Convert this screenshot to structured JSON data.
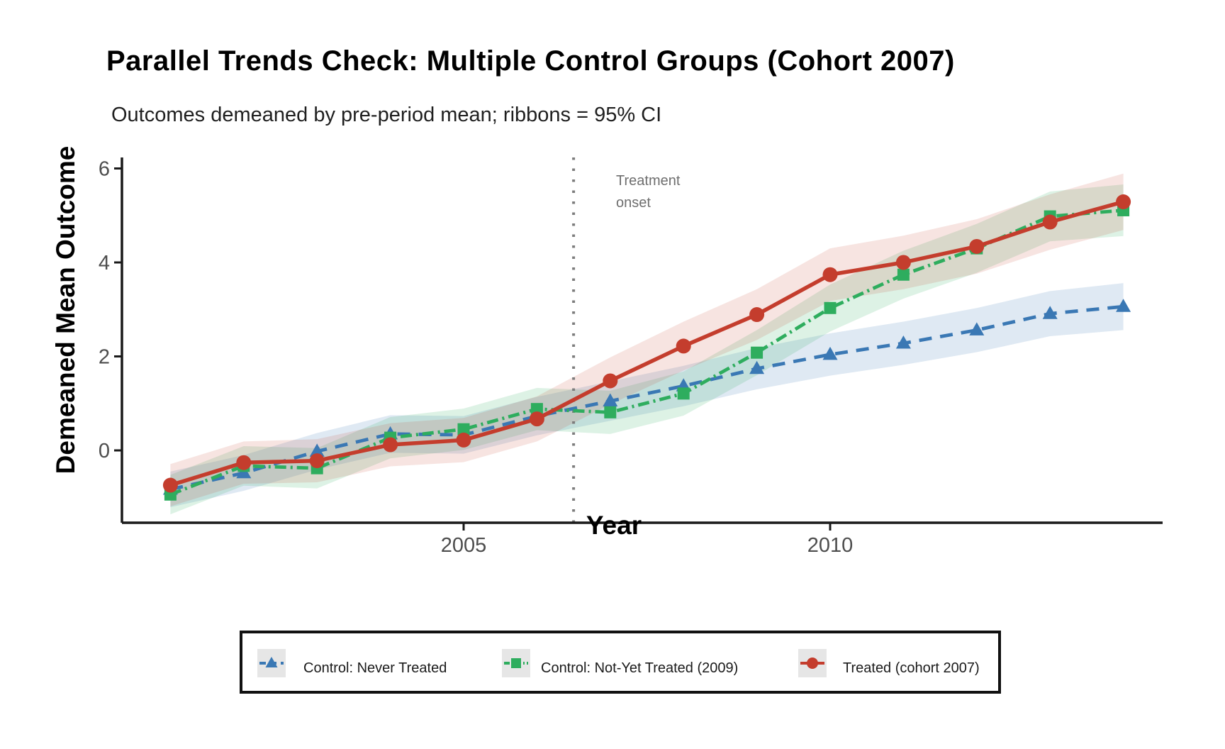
{
  "title": "Parallel Trends Check: Multiple Control Groups (Cohort 2007)",
  "subtitle": "Outcomes demeaned by pre-period mean; ribbons = 95% CI",
  "axes": {
    "x_label": "Year",
    "y_label": "Demeaned Mean Outcome",
    "x_ticks": [
      "2005",
      "2010"
    ],
    "x_tick_years": [
      2005,
      2010
    ],
    "y_ticks": [
      "0",
      "2",
      "4",
      "6"
    ],
    "y_tick_values": [
      0,
      2,
      4,
      6
    ]
  },
  "annotation": {
    "line1": "Treatment",
    "line2": "onset"
  },
  "colors": {
    "never_treated_blue": "#3A78B4",
    "not_yet_treated_green": "#2EAD5E",
    "treated_red": "#C43D2D",
    "vline_grey": "#7d7d7d",
    "tick_label_grey": "#4d4d4d",
    "axis_black": "#1a1a1a"
  },
  "chart_data": {
    "type": "line",
    "x": [
      2001,
      2002,
      2003,
      2004,
      2005,
      2006,
      2007,
      2008,
      2009,
      2010,
      2011,
      2012,
      2013,
      2014
    ],
    "series": [
      {
        "id": "control-never-treated",
        "name": "Control: Never Treated",
        "color": "#3A78B4",
        "linestyle": "dashed",
        "marker": "triangle",
        "ribbon_opacity": 0.16,
        "values": [
          -0.83,
          -0.48,
          -0.02,
          0.35,
          0.33,
          0.73,
          1.05,
          1.37,
          1.74,
          2.04,
          2.28,
          2.56,
          2.91,
          3.06
        ],
        "ci_halfwidth": [
          0.38,
          0.38,
          0.39,
          0.4,
          0.4,
          0.41,
          0.42,
          0.43,
          0.44,
          0.45,
          0.46,
          0.47,
          0.48,
          0.5
        ]
      },
      {
        "id": "control-not-yet-treated-2009",
        "name": "Control: Not-Yet Treated (2009)",
        "color": "#2EAD5E",
        "linestyle": "dashdot",
        "marker": "square",
        "ribbon_opacity": 0.16,
        "values": [
          -0.94,
          -0.33,
          -0.38,
          0.27,
          0.45,
          0.88,
          0.81,
          1.21,
          2.08,
          3.03,
          3.74,
          4.3,
          4.98,
          5.11
        ],
        "ci_halfwidth": [
          0.42,
          0.42,
          0.43,
          0.44,
          0.44,
          0.45,
          0.46,
          0.47,
          0.48,
          0.5,
          0.51,
          0.52,
          0.53,
          0.55
        ]
      },
      {
        "id": "treated-cohort-2007",
        "name": "Treated (cohort 2007)",
        "color": "#C43D2D",
        "linestyle": "solid",
        "marker": "circle",
        "ribbon_opacity": 0.14,
        "values": [
          -0.74,
          -0.26,
          -0.22,
          0.12,
          0.22,
          0.67,
          1.48,
          2.22,
          2.89,
          3.74,
          4.0,
          4.34,
          4.86,
          5.29
        ],
        "ci_halfwidth": [
          0.45,
          0.45,
          0.46,
          0.46,
          0.47,
          0.48,
          0.5,
          0.52,
          0.54,
          0.56,
          0.57,
          0.58,
          0.59,
          0.6
        ]
      }
    ],
    "vline_x": 2006.5,
    "title": "Parallel Trends Check: Multiple Control Groups (Cohort 2007)",
    "subtitle": "Outcomes demeaned by pre-period mean; ribbons = 95% CI",
    "xlabel": "Year",
    "ylabel": "Demeaned Mean Outcome",
    "ylim": [
      -1.75,
      6.2
    ],
    "xlim": [
      2000.3,
      2014.8
    ],
    "legend_position": "bottom",
    "grid": false
  }
}
